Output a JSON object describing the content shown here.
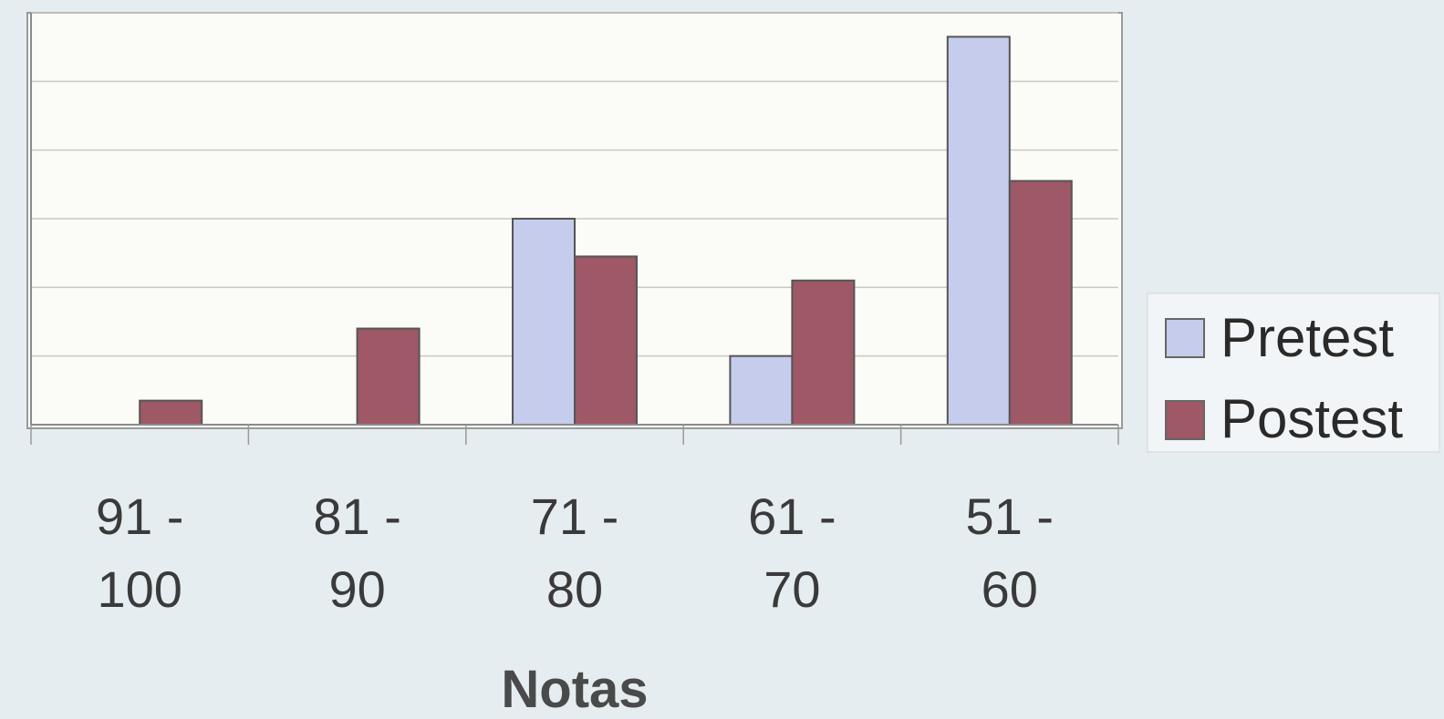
{
  "chart_data": {
    "type": "bar",
    "categories": [
      "91 - 100",
      "81 - 90",
      "71 - 80",
      "61 - 70",
      "51 - 60"
    ],
    "category_lines": [
      [
        "91 -",
        "100"
      ],
      [
        "81 -",
        "90"
      ],
      [
        "71 -",
        "80"
      ],
      [
        "61 -",
        "70"
      ],
      [
        "51 -",
        "60"
      ]
    ],
    "series": [
      {
        "name": "Pretest",
        "values": [
          0,
          0,
          6,
          2,
          11.3
        ],
        "color": "#c5ccec"
      },
      {
        "name": "Postest",
        "values": [
          0.7,
          2.8,
          4.9,
          4.2,
          7.1
        ],
        "color": "#9e5866"
      }
    ],
    "xlabel": "Notas",
    "ylim": [
      0,
      12
    ],
    "grid": true,
    "legend_position": "right"
  }
}
